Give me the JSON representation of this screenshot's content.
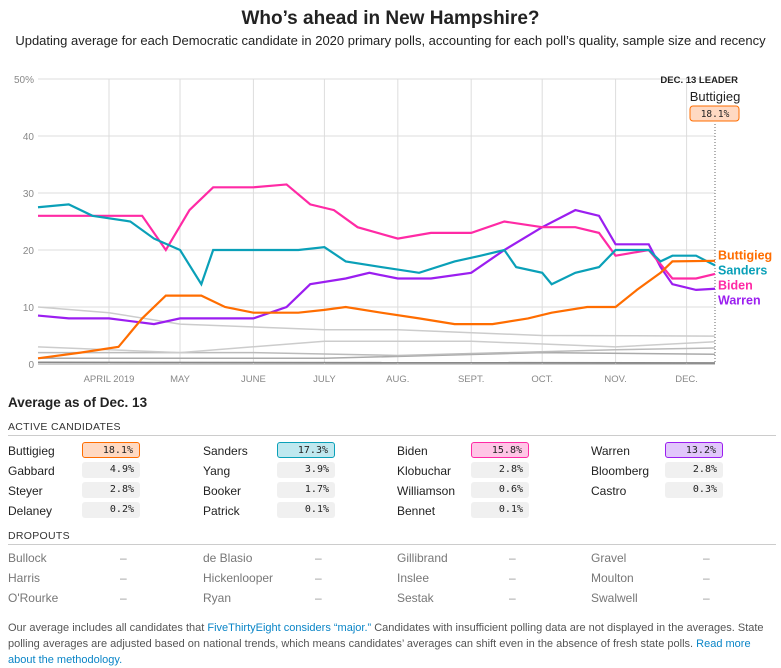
{
  "title": "Who’s ahead in New Hampshire?",
  "subtitle": "Updating average for each Democratic candidate in 2020 primary polls, accounting for each poll’s quality, sample size and recency",
  "chart_data": {
    "type": "line",
    "xlim": [
      "2019-03-02",
      "2019-12-13"
    ],
    "ylim": [
      0,
      50
    ],
    "y_ticks": [
      "50%",
      "40",
      "30",
      "20",
      "10",
      "0"
    ],
    "x_ticks": [
      {
        "date": "2019-04-01",
        "label": "APRIL 2019"
      },
      {
        "date": "2019-05-01",
        "label": "MAY"
      },
      {
        "date": "2019-06-01",
        "label": "JUNE"
      },
      {
        "date": "2019-07-01",
        "label": "JULY"
      },
      {
        "date": "2019-08-01",
        "label": "AUG."
      },
      {
        "date": "2019-09-01",
        "label": "SEPT."
      },
      {
        "date": "2019-10-01",
        "label": "OCT."
      },
      {
        "date": "2019-11-01",
        "label": "NOV."
      },
      {
        "date": "2019-12-01",
        "label": "DEC."
      }
    ],
    "grid": true,
    "leader": {
      "label": "DEC. 13 LEADER",
      "name": "Buttigieg",
      "value": "18.1%"
    },
    "series": [
      {
        "name": "Buttigieg",
        "color": "#ff6d00",
        "points": [
          [
            "2019-03-02",
            1
          ],
          [
            "2019-03-20",
            2
          ],
          [
            "2019-04-05",
            3
          ],
          [
            "2019-04-15",
            8
          ],
          [
            "2019-04-25",
            12
          ],
          [
            "2019-05-10",
            12
          ],
          [
            "2019-05-20",
            10
          ],
          [
            "2019-06-01",
            9
          ],
          [
            "2019-06-20",
            9
          ],
          [
            "2019-07-01",
            9.5
          ],
          [
            "2019-07-10",
            10
          ],
          [
            "2019-07-25",
            9
          ],
          [
            "2019-08-10",
            8
          ],
          [
            "2019-08-25",
            7
          ],
          [
            "2019-09-10",
            7
          ],
          [
            "2019-09-25",
            8
          ],
          [
            "2019-10-05",
            9
          ],
          [
            "2019-10-20",
            10
          ],
          [
            "2019-11-01",
            10
          ],
          [
            "2019-11-10",
            13
          ],
          [
            "2019-11-20",
            16
          ],
          [
            "2019-11-25",
            18
          ],
          [
            "2019-12-13",
            18.1
          ]
        ]
      },
      {
        "name": "Sanders",
        "color": "#0aa0b8",
        "points": [
          [
            "2019-03-02",
            27.5
          ],
          [
            "2019-03-15",
            28
          ],
          [
            "2019-03-25",
            26
          ],
          [
            "2019-04-10",
            25
          ],
          [
            "2019-04-20",
            22
          ],
          [
            "2019-05-01",
            20
          ],
          [
            "2019-05-10",
            14
          ],
          [
            "2019-05-15",
            20
          ],
          [
            "2019-06-01",
            20
          ],
          [
            "2019-06-20",
            20
          ],
          [
            "2019-07-01",
            20.5
          ],
          [
            "2019-07-10",
            18
          ],
          [
            "2019-07-25",
            17
          ],
          [
            "2019-08-10",
            16
          ],
          [
            "2019-08-25",
            18
          ],
          [
            "2019-09-05",
            19
          ],
          [
            "2019-09-15",
            20
          ],
          [
            "2019-09-20",
            17
          ],
          [
            "2019-10-01",
            16
          ],
          [
            "2019-10-05",
            14
          ],
          [
            "2019-10-15",
            16
          ],
          [
            "2019-10-25",
            17
          ],
          [
            "2019-11-01",
            20
          ],
          [
            "2019-11-15",
            20
          ],
          [
            "2019-11-20",
            18
          ],
          [
            "2019-11-25",
            19
          ],
          [
            "2019-12-05",
            19
          ],
          [
            "2019-12-13",
            17.3
          ]
        ]
      },
      {
        "name": "Biden",
        "color": "#ff2aa5",
        "points": [
          [
            "2019-03-02",
            26
          ],
          [
            "2019-04-01",
            26
          ],
          [
            "2019-04-15",
            26
          ],
          [
            "2019-04-25",
            20
          ],
          [
            "2019-05-05",
            27
          ],
          [
            "2019-05-15",
            31
          ],
          [
            "2019-06-01",
            31
          ],
          [
            "2019-06-15",
            31.5
          ],
          [
            "2019-06-25",
            28
          ],
          [
            "2019-07-05",
            27
          ],
          [
            "2019-07-15",
            24
          ],
          [
            "2019-08-01",
            22
          ],
          [
            "2019-08-15",
            23
          ],
          [
            "2019-09-01",
            23
          ],
          [
            "2019-09-15",
            25
          ],
          [
            "2019-10-01",
            24
          ],
          [
            "2019-10-15",
            24
          ],
          [
            "2019-10-25",
            23
          ],
          [
            "2019-11-01",
            19
          ],
          [
            "2019-11-15",
            20
          ],
          [
            "2019-11-25",
            15
          ],
          [
            "2019-12-05",
            15
          ],
          [
            "2019-12-13",
            15.8
          ]
        ]
      },
      {
        "name": "Warren",
        "color": "#9b1ef0",
        "points": [
          [
            "2019-03-02",
            8.5
          ],
          [
            "2019-03-15",
            8
          ],
          [
            "2019-04-01",
            8
          ],
          [
            "2019-04-20",
            7
          ],
          [
            "2019-05-01",
            8
          ],
          [
            "2019-05-15",
            8
          ],
          [
            "2019-06-01",
            8
          ],
          [
            "2019-06-15",
            10
          ],
          [
            "2019-06-25",
            14
          ],
          [
            "2019-07-10",
            15
          ],
          [
            "2019-07-20",
            16
          ],
          [
            "2019-08-01",
            15
          ],
          [
            "2019-08-15",
            15
          ],
          [
            "2019-09-01",
            16
          ],
          [
            "2019-09-15",
            20
          ],
          [
            "2019-10-01",
            24
          ],
          [
            "2019-10-15",
            27
          ],
          [
            "2019-10-25",
            26
          ],
          [
            "2019-11-01",
            21
          ],
          [
            "2019-11-15",
            21
          ],
          [
            "2019-11-20",
            17
          ],
          [
            "2019-11-25",
            14
          ],
          [
            "2019-12-05",
            13
          ],
          [
            "2019-12-13",
            13.2
          ]
        ]
      },
      {
        "color": "#cccccc",
        "points": [
          [
            "2019-03-02",
            10
          ],
          [
            "2019-04-01",
            9
          ],
          [
            "2019-05-01",
            7
          ],
          [
            "2019-07-01",
            6
          ],
          [
            "2019-08-01",
            6
          ],
          [
            "2019-10-01",
            5
          ],
          [
            "2019-12-13",
            4.9
          ]
        ]
      },
      {
        "color": "#cccccc",
        "points": [
          [
            "2019-03-02",
            3
          ],
          [
            "2019-05-01",
            2
          ],
          [
            "2019-07-01",
            4
          ],
          [
            "2019-09-01",
            4
          ],
          [
            "2019-11-01",
            3
          ],
          [
            "2019-12-13",
            3.9
          ]
        ]
      },
      {
        "color": "#bbbbbb",
        "points": [
          [
            "2019-03-02",
            2
          ],
          [
            "2019-06-01",
            2
          ],
          [
            "2019-08-01",
            1.5
          ],
          [
            "2019-11-01",
            2.5
          ],
          [
            "2019-12-13",
            2.8
          ]
        ]
      },
      {
        "color": "#aaaaaa",
        "points": [
          [
            "2019-03-02",
            1
          ],
          [
            "2019-07-01",
            1
          ],
          [
            "2019-10-01",
            2
          ],
          [
            "2019-12-13",
            1.7
          ]
        ]
      },
      {
        "color": "#888888",
        "points": [
          [
            "2019-03-02",
            0.3
          ],
          [
            "2019-12-13",
            0.2
          ]
        ]
      }
    ]
  },
  "summary": {
    "heading": "Average as of Dec. 13",
    "active_label": "ACTIVE CANDIDATES",
    "dropouts_label": "DROPOUTS",
    "active": [
      [
        {
          "name": "Buttigieg",
          "value": "18.1%",
          "hl": "#ff6d00",
          "bg": "#ffd9c2"
        },
        {
          "name": "Sanders",
          "value": "17.3%",
          "hl": "#0aa0b8",
          "bg": "#bfe8ef"
        },
        {
          "name": "Biden",
          "value": "15.8%",
          "hl": "#ff2aa5",
          "bg": "#ffc6e6"
        },
        {
          "name": "Warren",
          "value": "13.2%",
          "hl": "#9b1ef0",
          "bg": "#e1c7fb"
        }
      ],
      [
        {
          "name": "Gabbard",
          "value": "4.9%"
        },
        {
          "name": "Yang",
          "value": "3.9%"
        },
        {
          "name": "Klobuchar",
          "value": "2.8%"
        },
        {
          "name": "Bloomberg",
          "value": "2.8%"
        }
      ],
      [
        {
          "name": "Steyer",
          "value": "2.8%"
        },
        {
          "name": "Booker",
          "value": "1.7%"
        },
        {
          "name": "Williamson",
          "value": "0.6%"
        },
        {
          "name": "Castro",
          "value": "0.3%"
        }
      ],
      [
        {
          "name": "Delaney",
          "value": "0.2%"
        },
        {
          "name": "Patrick",
          "value": "0.1%"
        },
        {
          "name": "Bennet",
          "value": "0.1%"
        }
      ]
    ],
    "dropouts": [
      [
        "Bullock",
        "de Blasio",
        "Gillibrand",
        "Gravel"
      ],
      [
        "Harris",
        "Hickenlooper",
        "Inslee",
        "Moulton"
      ],
      [
        "O'Rourke",
        "Ryan",
        "Sestak",
        "Swalwell"
      ]
    ],
    "dash": "–"
  },
  "footer": {
    "t1": "Our average includes all candidates that ",
    "link1": "FiveThirtyEight considers “major.”",
    "t2": " Candidates with insufficient polling data are not displayed in the averages. State polling averages are adjusted based on national trends, which means candidates’ averages can shift even in the absence of fresh state polls. ",
    "link2": "Read more about the methodology."
  }
}
